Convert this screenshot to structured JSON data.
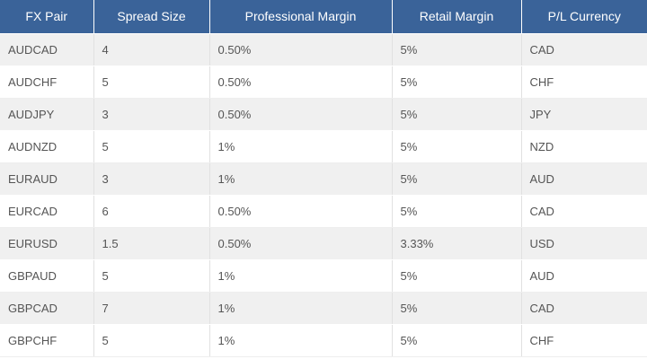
{
  "table": {
    "headers": [
      "FX Pair",
      "Spread Size",
      "Professional Margin",
      "Retail Margin",
      "P/L Currency"
    ],
    "rows": [
      [
        "AUDCAD",
        "4",
        "0.50%",
        "5%",
        "CAD"
      ],
      [
        "AUDCHF",
        "5",
        "0.50%",
        "5%",
        "CHF"
      ],
      [
        "AUDJPY",
        "3",
        "0.50%",
        "5%",
        "JPY"
      ],
      [
        "AUDNZD",
        "5",
        "1%",
        "5%",
        "NZD"
      ],
      [
        "EURAUD",
        "3",
        "1%",
        "5%",
        "AUD"
      ],
      [
        "EURCAD",
        "6",
        "0.50%",
        "5%",
        "CAD"
      ],
      [
        "EURUSD",
        "1.5",
        "0.50%",
        "3.33%",
        "USD"
      ],
      [
        "GBPAUD",
        "5",
        "1%",
        "5%",
        "AUD"
      ],
      [
        "GBPCAD",
        "7",
        "1%",
        "5%",
        "CAD"
      ],
      [
        "GBPCHF",
        "5",
        "1%",
        "5%",
        "CHF"
      ]
    ]
  },
  "colors": {
    "header_bg": "#3a6399",
    "header_text": "#ffffff",
    "row_alt_bg": "#f0f0f0",
    "cell_text": "#555555"
  }
}
